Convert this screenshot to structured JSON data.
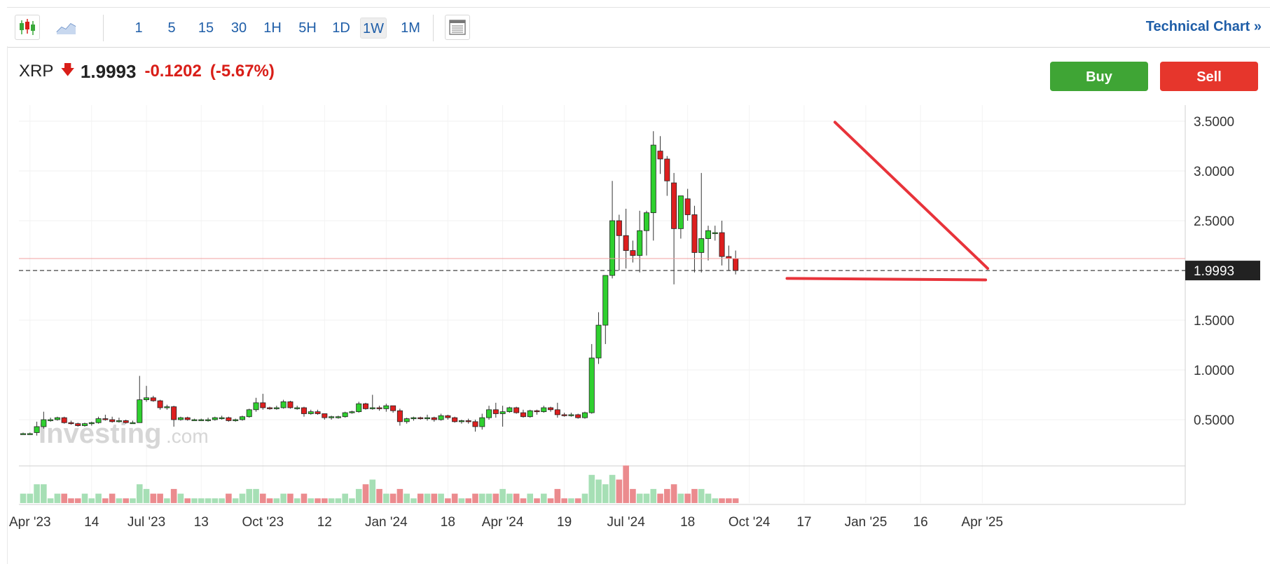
{
  "toolbar": {
    "chart_types": [
      {
        "name": "candlestick",
        "icon": "candlestick-icon"
      },
      {
        "name": "line",
        "icon": "line-chart-icon"
      }
    ],
    "timeframes": [
      "1",
      "5",
      "15",
      "30",
      "1H",
      "5H",
      "1D",
      "1W",
      "1M"
    ],
    "active_timeframe": "1W",
    "technical_chart_label": "Technical Chart »"
  },
  "quote": {
    "symbol": "XRP",
    "price": "1.9993",
    "change": "-0.1202",
    "change_pct": "(-5.67%)",
    "down_color": "#d91e18"
  },
  "actions": {
    "buy_label": "Buy",
    "sell_label": "Sell",
    "buy_color": "#3fa535",
    "sell_color": "#e6362c"
  },
  "watermark": {
    "brand": "Investing",
    "suffix": ".com"
  },
  "chart_data": {
    "type": "candlestick",
    "interval": "1W",
    "y_ticks": [
      "3.5000",
      "3.0000",
      "2.5000",
      "1.5000",
      "1.0000",
      "0.5000"
    ],
    "y_tick_values": [
      3.5,
      3.0,
      2.5,
      1.5,
      1.0,
      0.5
    ],
    "ylim": [
      0.14,
      3.62
    ],
    "last_price_label": "1.9993",
    "last_price": 1.9993,
    "prev_close": 2.1195,
    "x_labels": [
      "Apr '23",
      "14",
      "Jul '23",
      "13",
      "Oct '23",
      "12",
      "Jan '24",
      "18",
      "Apr '24",
      "19",
      "Jul '24",
      "18",
      "Oct '24",
      "17",
      "Jan '25",
      "16",
      "Apr '25"
    ],
    "x_label_index": [
      1,
      10,
      18,
      26,
      35,
      44,
      53,
      62,
      70,
      79,
      88,
      97,
      106,
      114,
      123,
      131,
      140
    ],
    "bull_color": "#2fd02f",
    "bear_color": "#dd1f1f",
    "trendlines": [
      {
        "name": "resistance",
        "from": {
          "index": 118.5,
          "price": 3.49
        },
        "to": {
          "index": 140.8,
          "price": 2.02
        }
      },
      {
        "name": "support",
        "from": {
          "index": 111.5,
          "price": 1.92
        },
        "to": {
          "index": 140.5,
          "price": 1.905
        }
      }
    ],
    "candles": [
      [
        0.36,
        0.37,
        0.35,
        0.36,
        2
      ],
      [
        0.36,
        0.37,
        0.35,
        0.36,
        2
      ],
      [
        0.37,
        0.48,
        0.34,
        0.43,
        4
      ],
      [
        0.43,
        0.58,
        0.41,
        0.5,
        4
      ],
      [
        0.5,
        0.52,
        0.48,
        0.5,
        1
      ],
      [
        0.5,
        0.53,
        0.49,
        0.52,
        2
      ],
      [
        0.52,
        0.53,
        0.46,
        0.47,
        2
      ],
      [
        0.47,
        0.49,
        0.45,
        0.46,
        1
      ],
      [
        0.46,
        0.47,
        0.43,
        0.44,
        1
      ],
      [
        0.44,
        0.47,
        0.43,
        0.46,
        2
      ],
      [
        0.46,
        0.48,
        0.44,
        0.47,
        1
      ],
      [
        0.47,
        0.53,
        0.46,
        0.51,
        2
      ],
      [
        0.51,
        0.55,
        0.49,
        0.5,
        1
      ],
      [
        0.5,
        0.53,
        0.47,
        0.48,
        2
      ],
      [
        0.48,
        0.52,
        0.47,
        0.49,
        1
      ],
      [
        0.49,
        0.5,
        0.46,
        0.47,
        1
      ],
      [
        0.47,
        0.49,
        0.46,
        0.47,
        1
      ],
      [
        0.47,
        0.94,
        0.47,
        0.7,
        4
      ],
      [
        0.7,
        0.84,
        0.68,
        0.72,
        3
      ],
      [
        0.72,
        0.74,
        0.68,
        0.69,
        2
      ],
      [
        0.69,
        0.7,
        0.6,
        0.62,
        2
      ],
      [
        0.62,
        0.65,
        0.6,
        0.63,
        1
      ],
      [
        0.63,
        0.64,
        0.43,
        0.5,
        3
      ],
      [
        0.5,
        0.53,
        0.49,
        0.52,
        2
      ],
      [
        0.52,
        0.53,
        0.49,
        0.5,
        1
      ],
      [
        0.5,
        0.51,
        0.49,
        0.5,
        1
      ],
      [
        0.5,
        0.51,
        0.49,
        0.5,
        1
      ],
      [
        0.5,
        0.52,
        0.48,
        0.5,
        1
      ],
      [
        0.5,
        0.53,
        0.49,
        0.52,
        1
      ],
      [
        0.52,
        0.54,
        0.5,
        0.52,
        1
      ],
      [
        0.52,
        0.53,
        0.48,
        0.49,
        2
      ],
      [
        0.49,
        0.51,
        0.48,
        0.5,
        1
      ],
      [
        0.5,
        0.54,
        0.49,
        0.53,
        2
      ],
      [
        0.53,
        0.61,
        0.52,
        0.6,
        3
      ],
      [
        0.6,
        0.72,
        0.58,
        0.67,
        3
      ],
      [
        0.67,
        0.76,
        0.6,
        0.62,
        2
      ],
      [
        0.62,
        0.63,
        0.6,
        0.61,
        1
      ],
      [
        0.61,
        0.64,
        0.6,
        0.62,
        1
      ],
      [
        0.62,
        0.7,
        0.61,
        0.68,
        2
      ],
      [
        0.68,
        0.69,
        0.61,
        0.62,
        2
      ],
      [
        0.62,
        0.64,
        0.6,
        0.62,
        1
      ],
      [
        0.62,
        0.63,
        0.53,
        0.56,
        2
      ],
      [
        0.56,
        0.6,
        0.55,
        0.58,
        1
      ],
      [
        0.58,
        0.6,
        0.55,
        0.56,
        1
      ],
      [
        0.56,
        0.56,
        0.5,
        0.52,
        1
      ],
      [
        0.52,
        0.54,
        0.5,
        0.53,
        1
      ],
      [
        0.53,
        0.54,
        0.51,
        0.53,
        1
      ],
      [
        0.53,
        0.58,
        0.52,
        0.57,
        2
      ],
      [
        0.57,
        0.59,
        0.56,
        0.58,
        1
      ],
      [
        0.58,
        0.68,
        0.57,
        0.66,
        3
      ],
      [
        0.66,
        0.67,
        0.6,
        0.61,
        4
      ],
      [
        0.61,
        0.75,
        0.6,
        0.62,
        5
      ],
      [
        0.62,
        0.64,
        0.59,
        0.61,
        3
      ],
      [
        0.61,
        0.66,
        0.58,
        0.64,
        2
      ],
      [
        0.64,
        0.64,
        0.57,
        0.59,
        2
      ],
      [
        0.59,
        0.61,
        0.44,
        0.48,
        3
      ],
      [
        0.48,
        0.52,
        0.46,
        0.51,
        2
      ],
      [
        0.51,
        0.53,
        0.49,
        0.52,
        1
      ],
      [
        0.52,
        0.53,
        0.5,
        0.51,
        2
      ],
      [
        0.51,
        0.55,
        0.49,
        0.52,
        2
      ],
      [
        0.52,
        0.53,
        0.48,
        0.5,
        2
      ],
      [
        0.5,
        0.56,
        0.49,
        0.54,
        2
      ],
      [
        0.54,
        0.55,
        0.5,
        0.52,
        1
      ],
      [
        0.52,
        0.53,
        0.47,
        0.48,
        2
      ],
      [
        0.48,
        0.5,
        0.46,
        0.49,
        1
      ],
      [
        0.49,
        0.51,
        0.46,
        0.48,
        1
      ],
      [
        0.48,
        0.5,
        0.38,
        0.43,
        2
      ],
      [
        0.43,
        0.56,
        0.4,
        0.52,
        2
      ],
      [
        0.52,
        0.64,
        0.5,
        0.6,
        2
      ],
      [
        0.6,
        0.67,
        0.52,
        0.56,
        2
      ],
      [
        0.56,
        0.64,
        0.43,
        0.58,
        3
      ],
      [
        0.58,
        0.63,
        0.57,
        0.62,
        2
      ],
      [
        0.62,
        0.63,
        0.56,
        0.57,
        2
      ],
      [
        0.57,
        0.6,
        0.52,
        0.53,
        1
      ],
      [
        0.53,
        0.6,
        0.52,
        0.59,
        2
      ],
      [
        0.59,
        0.6,
        0.55,
        0.58,
        1
      ],
      [
        0.58,
        0.64,
        0.57,
        0.62,
        2
      ],
      [
        0.62,
        0.63,
        0.58,
        0.6,
        1
      ],
      [
        0.6,
        0.67,
        0.52,
        0.55,
        3
      ],
      [
        0.55,
        0.57,
        0.53,
        0.54,
        1
      ],
      [
        0.54,
        0.57,
        0.53,
        0.55,
        1
      ],
      [
        0.55,
        0.56,
        0.51,
        0.52,
        1
      ],
      [
        0.52,
        0.58,
        0.51,
        0.57,
        2
      ],
      [
        0.57,
        1.26,
        0.56,
        1.12,
        6
      ],
      [
        1.12,
        1.58,
        1.06,
        1.45,
        5
      ],
      [
        1.45,
        1.95,
        1.26,
        1.95,
        4
      ],
      [
        1.95,
        2.9,
        1.92,
        2.5,
        6
      ],
      [
        2.5,
        2.56,
        2.0,
        2.35,
        5
      ],
      [
        2.35,
        2.62,
        2.02,
        2.2,
        8
      ],
      [
        2.2,
        2.3,
        2.08,
        2.15,
        3
      ],
      [
        2.15,
        2.6,
        1.98,
        2.4,
        2
      ],
      [
        2.4,
        2.6,
        2.15,
        2.58,
        2
      ],
      [
        2.58,
        3.4,
        2.3,
        3.26,
        3
      ],
      [
        3.2,
        3.35,
        2.97,
        3.12,
        2
      ],
      [
        3.12,
        3.15,
        2.75,
        2.9,
        3
      ],
      [
        2.88,
        2.98,
        1.86,
        2.42,
        4
      ],
      [
        2.42,
        2.75,
        2.32,
        2.75,
        2
      ],
      [
        2.72,
        2.82,
        2.5,
        2.56,
        2
      ],
      [
        2.56,
        2.65,
        1.98,
        2.18,
        3
      ],
      [
        2.18,
        2.98,
        1.98,
        2.32,
        3
      ],
      [
        2.32,
        2.45,
        2.1,
        2.4,
        2
      ],
      [
        2.38,
        2.45,
        2.3,
        2.38,
        1
      ],
      [
        2.38,
        2.5,
        2.05,
        2.14,
        1
      ],
      [
        2.14,
        2.25,
        2.0,
        2.12,
        1
      ],
      [
        2.12,
        2.2,
        1.96,
        1.9993,
        1
      ]
    ]
  }
}
